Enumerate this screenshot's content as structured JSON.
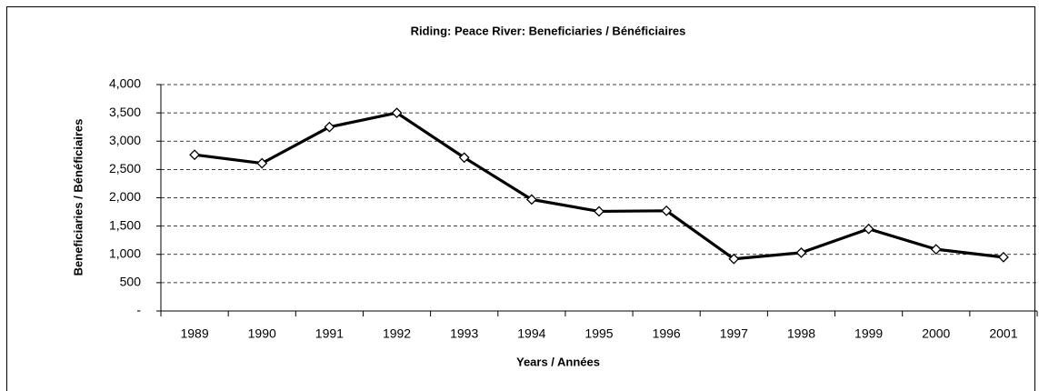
{
  "chart_data": {
    "type": "line",
    "title": "Riding:  Peace River:  Beneficiaries / Bénéficiaires",
    "x_label": "Years / Années",
    "y_label": "Beneficiaries / Bénéficiaires",
    "categories": [
      "1989",
      "1990",
      "1991",
      "1992",
      "1993",
      "1994",
      "1995",
      "1996",
      "1997",
      "1998",
      "1999",
      "2000",
      "2001"
    ],
    "values": [
      2760,
      2610,
      3250,
      3500,
      2710,
      1970,
      1760,
      1770,
      920,
      1030,
      1450,
      1090,
      950
    ],
    "color": "#000000",
    "ylim": [
      0,
      4000
    ],
    "yticks": [
      {
        "value": 0,
        "label": "-"
      },
      500,
      {
        "value": 1000,
        "label": "1,000"
      },
      {
        "value": 1500,
        "label": "1,500"
      },
      {
        "value": 2000,
        "label": "2,000"
      },
      {
        "value": 2500,
        "label": "2,500"
      },
      {
        "value": 3000,
        "label": "3,000"
      },
      {
        "value": 3500,
        "label": "3,500"
      },
      {
        "value": 4000,
        "label": "4,000"
      }
    ],
    "grid": true
  }
}
